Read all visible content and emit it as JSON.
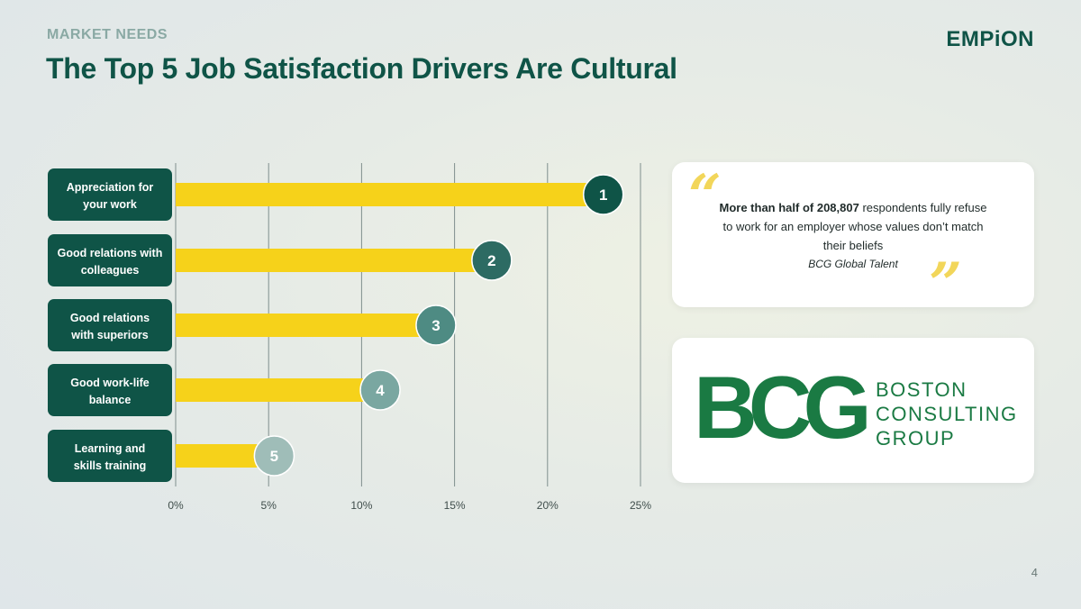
{
  "header": {
    "eyebrow": "MARKET NEEDS",
    "title": "The Top 5 Job Satisfaction Drivers Are Cultural",
    "brand": "EMPiON"
  },
  "chart_data": {
    "type": "bar",
    "orientation": "horizontal",
    "categories": [
      [
        "Appreciation for",
        "your work"
      ],
      [
        "Good relations with",
        "colleagues"
      ],
      [
        "Good relations",
        "with superiors"
      ],
      [
        "Good work-life",
        "balance"
      ],
      [
        "Learning and",
        "skills training"
      ]
    ],
    "values": [
      23,
      17,
      14,
      11,
      5.3
    ],
    "ranks": [
      "1",
      "2",
      "3",
      "4",
      "5"
    ],
    "xlim": [
      0,
      25
    ],
    "xticks": [
      "0%",
      "5%",
      "10%",
      "15%",
      "20%",
      "25%"
    ],
    "grid": true,
    "colors": {
      "bar": "#f6d21a",
      "label_box": "#0f5447",
      "rank_badges": [
        "#0f5447",
        "#2d6b63",
        "#4e8b83",
        "#7aa7a1",
        "#9fbdb8"
      ],
      "grid": "#7f8f8d"
    }
  },
  "quote": {
    "open_mark": "“",
    "close_mark": "”",
    "bold_part": "More than half of 208,807",
    "text_part": " respondents fully refuse to work for an employer whose values don’t match their beliefs",
    "source": "BCG Global Talent"
  },
  "logo": {
    "mark": "BCG",
    "name_lines": [
      "BOSTON",
      "CONSULTING",
      "GROUP"
    ],
    "color": "#1a7a43"
  },
  "footer": {
    "page_number": "4"
  }
}
